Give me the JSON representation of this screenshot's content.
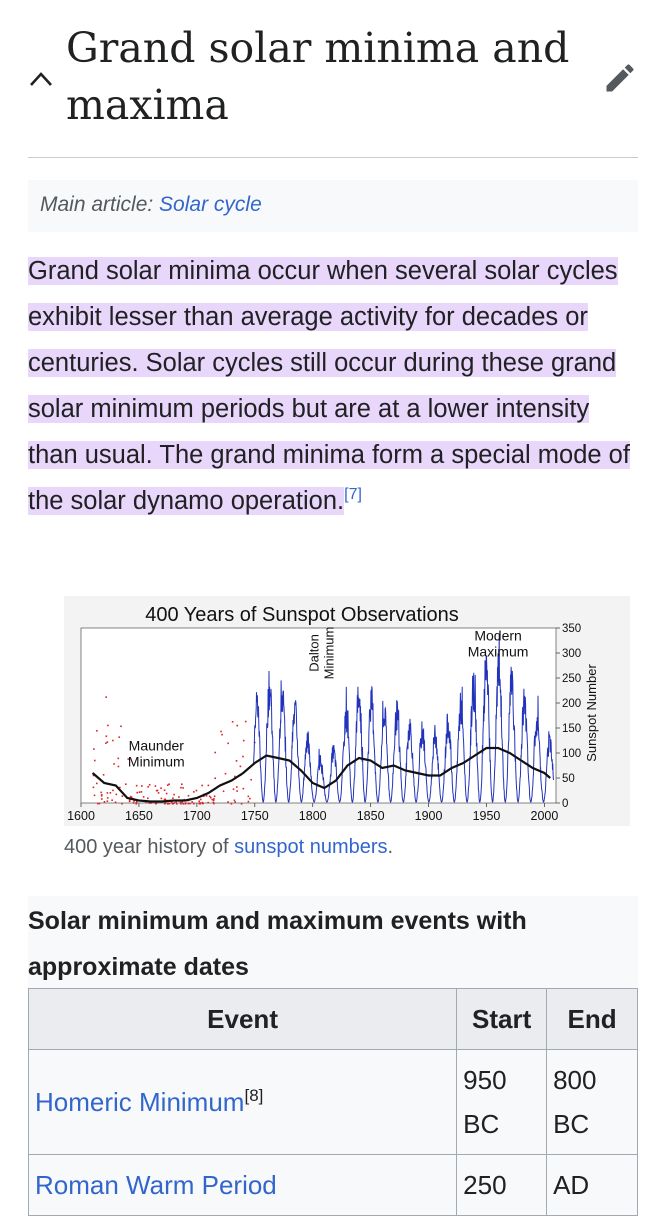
{
  "section": {
    "title": "Grand solar minima and maxima"
  },
  "hatnote": {
    "prefix": "Main article: ",
    "link": "Solar cycle"
  },
  "paragraph": {
    "text": "Grand solar minima occur when several solar cycles exhibit lesser than average activity for decades or centuries. Solar cycles still occur during these grand solar minimum periods but are at a lower intensity than usual. The grand minima form a special mode of the solar dynamo operation.",
    "ref": "[7]"
  },
  "figure": {
    "caption_prefix": "400 year history of ",
    "caption_link": "sunspot numbers",
    "caption_suffix": "."
  },
  "chart_data": {
    "type": "line",
    "title": "400 Years of Sunspot Observations",
    "xlabel": "",
    "ylabel": "Sunspot Number",
    "xlim": [
      1600,
      2010
    ],
    "ylim": [
      0,
      350
    ],
    "x_ticks": [
      "1600",
      "1650",
      "1700",
      "1750",
      "1800",
      "1850",
      "1900",
      "1950",
      "2000"
    ],
    "y_ticks": [
      "0",
      "50",
      "100",
      "150",
      "200",
      "250",
      "300",
      "350"
    ],
    "annotations": [
      {
        "text": "Maunder Minimum",
        "lines": [
          "Maunder",
          "Minimum"
        ],
        "x": 1665,
        "y": 105
      },
      {
        "text": "Dalton Minimum",
        "lines": [
          "Dalton",
          "Minimum"
        ],
        "x": 1810,
        "y": 300,
        "rotated": true
      },
      {
        "text": "Modern Maximum",
        "lines": [
          "Modern",
          "Maximum"
        ],
        "x": 1960,
        "y": 325
      }
    ],
    "series": [
      {
        "name": "Observations (early, red)",
        "color": "#dd2222",
        "style": "dots"
      },
      {
        "name": "Monthly sunspot number",
        "color": "#2233bb",
        "style": "line"
      },
      {
        "name": "Smoothed average",
        "color": "#111111",
        "style": "line",
        "x": [
          1610,
          1620,
          1630,
          1640,
          1650,
          1660,
          1670,
          1680,
          1690,
          1700,
          1710,
          1720,
          1730,
          1740,
          1750,
          1760,
          1770,
          1780,
          1790,
          1800,
          1810,
          1820,
          1830,
          1840,
          1850,
          1860,
          1870,
          1880,
          1890,
          1900,
          1910,
          1920,
          1930,
          1940,
          1950,
          1960,
          1970,
          1980,
          1990,
          2000,
          2005
        ],
        "values": [
          60,
          40,
          35,
          10,
          5,
          3,
          3,
          5,
          5,
          10,
          20,
          35,
          45,
          60,
          80,
          95,
          90,
          85,
          65,
          40,
          30,
          45,
          75,
          90,
          85,
          70,
          75,
          65,
          60,
          55,
          55,
          70,
          80,
          95,
          110,
          110,
          100,
          85,
          70,
          60,
          50
        ]
      }
    ]
  },
  "table": {
    "caption": "Solar minimum and maximum events with approximate dates",
    "headers": {
      "event": "Event",
      "start": "Start",
      "end": "End"
    },
    "rows": [
      {
        "event": "Homeric Minimum",
        "ref": "[8]",
        "start": "950 BC",
        "end": "800 BC"
      },
      {
        "event": "Roman Warm Period",
        "ref": "",
        "start": "250",
        "end": "AD"
      }
    ]
  },
  "colors": {
    "link": "#3366cc",
    "highlight": "#e8d6fb",
    "text": "#202122"
  }
}
